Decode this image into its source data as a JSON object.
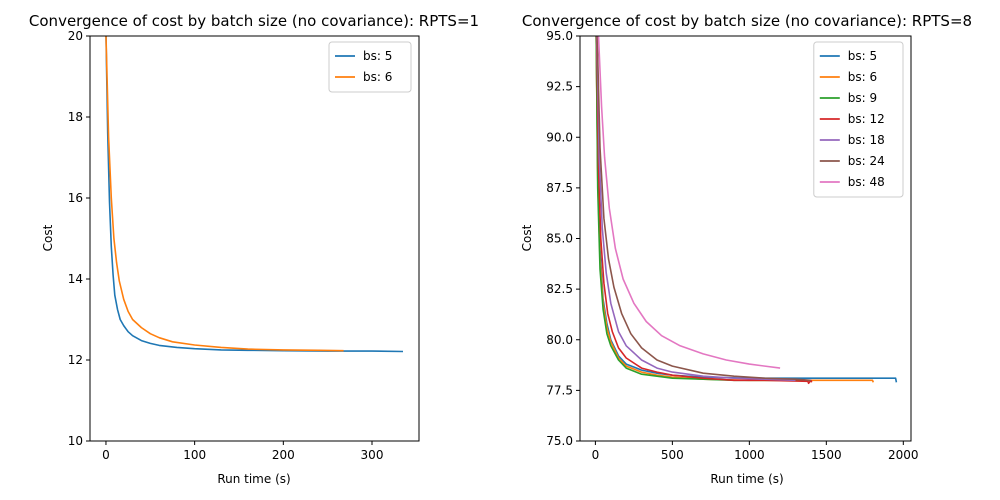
{
  "chart_data": [
    {
      "type": "line",
      "title": "Convergence of cost by batch size (no covariance): RPTS=1",
      "xlabel": "Run time (s)",
      "ylabel": "Cost",
      "xlim": [
        -18,
        353
      ],
      "ylim": [
        10,
        20
      ],
      "xticks": [
        0,
        100,
        200,
        300
      ],
      "yticks": [
        10,
        12,
        14,
        16,
        18,
        20
      ],
      "legend_position": "top-right",
      "series": [
        {
          "name": "bs: 5",
          "color": "#1f77b4",
          "x": [
            0,
            2,
            4,
            6,
            8,
            10,
            13,
            16,
            20,
            25,
            30,
            40,
            50,
            60,
            80,
            100,
            130,
            160,
            200,
            250,
            300,
            335
          ],
          "y": [
            20,
            17.6,
            15.9,
            14.8,
            14.1,
            13.6,
            13.25,
            13.0,
            12.85,
            12.7,
            12.6,
            12.48,
            12.41,
            12.36,
            12.31,
            12.28,
            12.25,
            12.24,
            12.23,
            12.22,
            12.22,
            12.21
          ]
        },
        {
          "name": "bs: 6",
          "color": "#ff7f0e",
          "x": [
            0,
            3,
            6,
            9,
            12,
            15,
            20,
            25,
            30,
            40,
            50,
            60,
            75,
            100,
            130,
            160,
            200,
            240,
            268
          ],
          "y": [
            20,
            17.5,
            16.0,
            15.0,
            14.4,
            13.95,
            13.5,
            13.2,
            13.0,
            12.8,
            12.65,
            12.55,
            12.45,
            12.37,
            12.31,
            12.27,
            12.25,
            12.24,
            12.23
          ]
        }
      ]
    },
    {
      "type": "line",
      "title": "Convergence of cost by batch size (no covariance): RPTS=8",
      "xlabel": "Run time (s)",
      "ylabel": "Cost",
      "xlim": [
        -100,
        2050
      ],
      "ylim": [
        75,
        95
      ],
      "xticks": [
        0,
        500,
        1000,
        1500,
        2000
      ],
      "yticks": [
        75.0,
        77.5,
        80.0,
        82.5,
        85.0,
        87.5,
        90.0,
        92.5,
        95.0
      ],
      "legend_position": "top-right",
      "series": [
        {
          "name": "bs: 5",
          "color": "#1f77b4",
          "x": [
            5,
            15,
            30,
            50,
            75,
            100,
            150,
            200,
            300,
            400,
            500,
            700,
            1000,
            1300,
            1600,
            1950,
            1955
          ],
          "y": [
            95,
            88.5,
            84.5,
            82.0,
            80.8,
            80.0,
            79.2,
            78.8,
            78.5,
            78.35,
            78.25,
            78.15,
            78.1,
            78.1,
            78.1,
            78.1,
            77.9
          ]
        },
        {
          "name": "bs: 6",
          "color": "#ff7f0e",
          "x": [
            5,
            15,
            30,
            50,
            75,
            100,
            150,
            200,
            300,
            400,
            500,
            700,
            1000,
            1300,
            1600,
            1800,
            1805
          ],
          "y": [
            95,
            88.0,
            84.0,
            81.8,
            80.6,
            79.9,
            79.1,
            78.7,
            78.4,
            78.25,
            78.15,
            78.05,
            78.0,
            78.0,
            78.0,
            78.0,
            77.9
          ]
        },
        {
          "name": "bs: 9",
          "color": "#2ca02c",
          "x": [
            5,
            15,
            30,
            50,
            75,
            100,
            150,
            200,
            300,
            400,
            500,
            700,
            900,
            1100,
            1400
          ],
          "y": [
            95,
            87.5,
            83.5,
            81.5,
            80.3,
            79.7,
            79.0,
            78.6,
            78.3,
            78.2,
            78.1,
            78.05,
            78.0,
            78.0,
            78.0
          ]
        },
        {
          "name": "bs: 12",
          "color": "#d62728",
          "x": [
            8,
            20,
            35,
            55,
            80,
            110,
            150,
            200,
            300,
            400,
            500,
            700,
            900,
            1100,
            1380,
            1385,
            1400,
            1405
          ],
          "y": [
            95,
            88.5,
            85.0,
            82.8,
            81.3,
            80.4,
            79.6,
            79.1,
            78.6,
            78.4,
            78.25,
            78.1,
            78.0,
            78.0,
            77.95,
            77.85,
            78.0,
            77.9
          ]
        },
        {
          "name": "bs: 18",
          "color": "#9467bd",
          "x": [
            10,
            25,
            45,
            70,
            100,
            150,
            200,
            300,
            400,
            500,
            700,
            900,
            1100,
            1300
          ],
          "y": [
            95,
            89.0,
            85.5,
            83.3,
            81.8,
            80.4,
            79.7,
            79.0,
            78.6,
            78.4,
            78.2,
            78.1,
            78.05,
            78.0
          ]
        },
        {
          "name": "bs: 24",
          "color": "#8c564b",
          "x": [
            12,
            30,
            55,
            85,
            120,
            170,
            230,
            300,
            400,
            500,
            700,
            900,
            1100,
            1300,
            1400
          ],
          "y": [
            95,
            89.5,
            86.0,
            84.0,
            82.6,
            81.3,
            80.3,
            79.6,
            79.0,
            78.7,
            78.35,
            78.2,
            78.1,
            78.05,
            78.0
          ]
        },
        {
          "name": "bs: 48",
          "color": "#e377c2",
          "x": [
            20,
            40,
            60,
            90,
            130,
            180,
            250,
            330,
            430,
            550,
            700,
            850,
            1000,
            1200
          ],
          "y": [
            95,
            91.5,
            89.0,
            86.5,
            84.5,
            83.0,
            81.8,
            80.9,
            80.2,
            79.7,
            79.3,
            79.0,
            78.8,
            78.6
          ]
        }
      ]
    }
  ]
}
